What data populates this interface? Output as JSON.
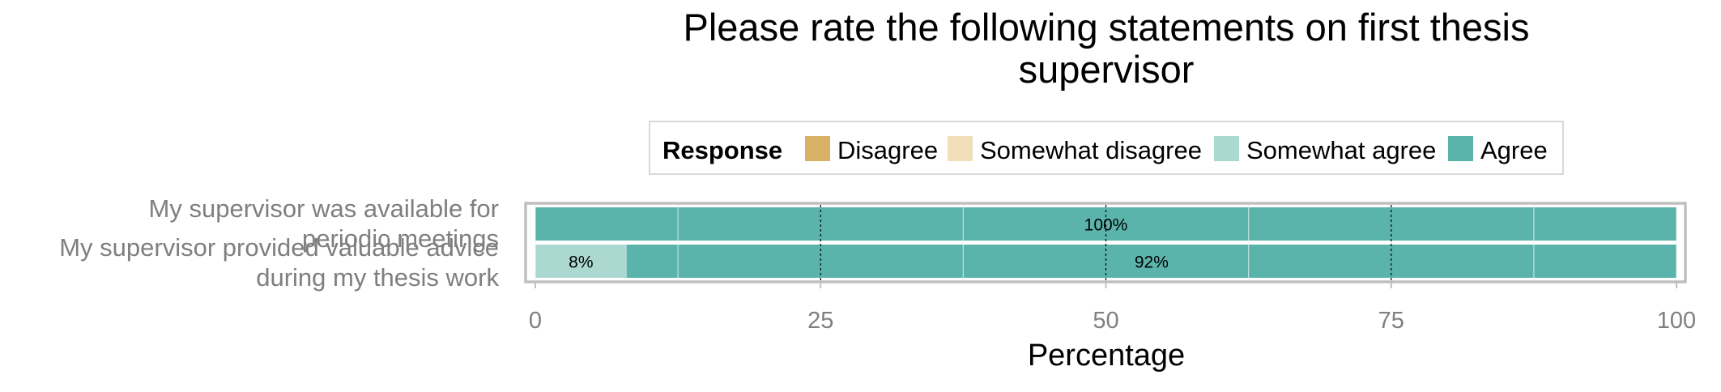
{
  "chart_data": {
    "type": "bar",
    "orientation": "horizontal",
    "stacked": true,
    "title_lines": [
      "Please rate the following statements on first thesis",
      "supervisor"
    ],
    "xlabel": "Percentage",
    "ylabel": "",
    "xlim": [
      0,
      100
    ],
    "x_ticks": [
      0,
      25,
      50,
      75,
      100
    ],
    "reference_lines": [
      25,
      50,
      75
    ],
    "grid": true,
    "legend": {
      "title": "Response",
      "position": "top",
      "entries": [
        {
          "name": "Disagree",
          "color": "#d8b365"
        },
        {
          "name": "Somewhat disagree",
          "color": "#f0dfb8"
        },
        {
          "name": "Somewhat agree",
          "color": "#acd8d2"
        },
        {
          "name": "Agree",
          "color": "#5ab4ac"
        }
      ]
    },
    "categories": [
      {
        "lines": [
          "My supervisor was available for",
          "periodic meetings"
        ]
      },
      {
        "lines": [
          "My supervisor provided valuable advice",
          "during my thesis work"
        ]
      }
    ],
    "series": [
      {
        "name": "Disagree",
        "values": [
          0,
          0
        ],
        "labels": [
          "",
          ""
        ]
      },
      {
        "name": "Somewhat disagree",
        "values": [
          0,
          0
        ],
        "labels": [
          "",
          ""
        ]
      },
      {
        "name": "Somewhat agree",
        "values": [
          0,
          8
        ],
        "labels": [
          "",
          "8%"
        ]
      },
      {
        "name": "Agree",
        "values": [
          100,
          92
        ],
        "labels": [
          "100%",
          "92%"
        ]
      }
    ]
  }
}
